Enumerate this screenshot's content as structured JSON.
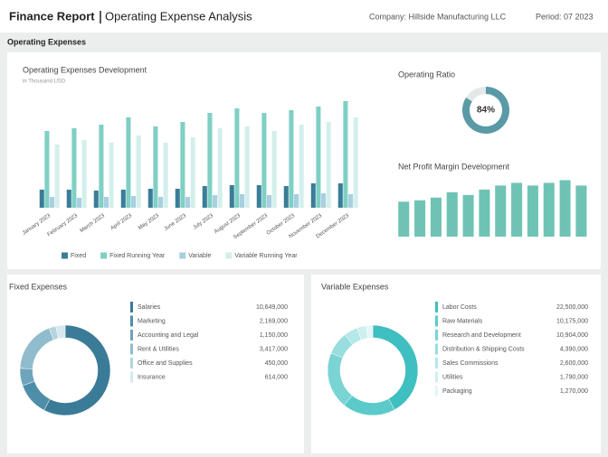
{
  "header": {
    "title": "Finance Report",
    "subtitle": "Operating Expense Analysis",
    "company": "Company: Hillside Manufacturing LLC",
    "period": "Period: 07 2023"
  },
  "section": "Operating Expenses",
  "chart_data": [
    {
      "type": "bar",
      "title": "Operating Expenses Development",
      "subtitle": "in Thousand USD",
      "categories": [
        "January 2023",
        "February 2023",
        "March 2023",
        "April 2023",
        "May 2023",
        "June 2023",
        "July 2023",
        "August 2023",
        "September 2023",
        "October 2023",
        "November 2023",
        "December 2023"
      ],
      "series": [
        {
          "name": "Fixed",
          "color": "#3b7d98",
          "values": [
            20,
            20,
            19,
            20,
            21,
            21,
            24,
            25,
            25,
            24,
            27,
            27
          ]
        },
        {
          "name": "Fixed Running Year",
          "color": "#7fcfc5",
          "values": [
            85,
            88,
            92,
            100,
            90,
            95,
            105,
            110,
            105,
            108,
            112,
            118
          ]
        },
        {
          "name": "Variable",
          "color": "#a9cfe0",
          "values": [
            12,
            11,
            12,
            13,
            12,
            12,
            14,
            15,
            14,
            15,
            16,
            15
          ]
        },
        {
          "name": "Variable Running Year",
          "color": "#d3efeb",
          "values": [
            70,
            75,
            72,
            80,
            72,
            78,
            88,
            90,
            85,
            92,
            95,
            100
          ]
        }
      ],
      "ylim": [
        0,
        130
      ]
    },
    {
      "type": "gauge",
      "title": "Operating Ratio",
      "values": [
        84
      ],
      "value_labels": [
        "84%"
      ],
      "ylim": [
        0,
        100
      ],
      "color": "#5a9aa6"
    },
    {
      "type": "bar",
      "title": "Net Profit Margin Development",
      "categories": [
        null,
        null,
        null,
        null,
        null,
        null,
        null,
        null,
        null,
        null,
        null,
        null
      ],
      "values": [
        26,
        27,
        29,
        33,
        31,
        35,
        38,
        40,
        38,
        40,
        42,
        38
      ],
      "color": "#6fc3b5",
      "ylim": [
        0,
        45
      ]
    },
    {
      "type": "donut",
      "title": "Fixed Expenses",
      "categories": [
        "Salaries",
        "Marketing",
        "Accounting and Legal",
        "Rent & Utilities",
        "Office and Supplies",
        "Insurance"
      ],
      "values": [
        10649000,
        2169000,
        1150000,
        3417000,
        450000,
        614000
      ],
      "value_labels": [
        "10,649,000",
        "2,169,000",
        "1,150,000",
        "3,417,000",
        "450,000",
        "614,000"
      ],
      "colors": [
        "#3a7b97",
        "#4f8ea9",
        "#6ea4bc",
        "#90bccd",
        "#b5d3df",
        "#d6e7ee"
      ]
    },
    {
      "type": "donut",
      "title": "Variable Expenses",
      "categories": [
        "Labor Costs",
        "Raw Materials",
        "Research and Development",
        "Distribution & Shipping Costs",
        "Sales Commissions",
        "Utilities",
        "Packaging"
      ],
      "values": [
        22500000,
        10175000,
        10904000,
        4390000,
        2600000,
        1790000,
        1270000
      ],
      "value_labels": [
        "22,500,000",
        "10,175,000",
        "10,904,000",
        "4,390,000",
        "2,600,000",
        "1,790,000",
        "1,270,000"
      ],
      "colors": [
        "#3fbfc0",
        "#5ccaca",
        "#7ad4d4",
        "#98dede",
        "#b5e8e8",
        "#cfefef",
        "#e4f6f6"
      ]
    }
  ]
}
